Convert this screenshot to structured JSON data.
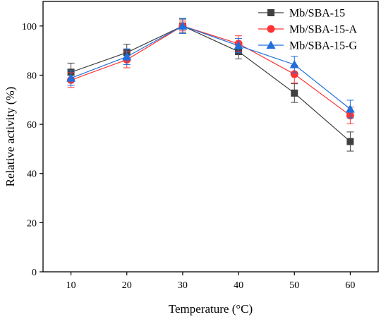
{
  "chart_data": {
    "type": "line",
    "xlabel": "Temperature (°C)",
    "ylabel": "Relative activity (%)",
    "xlim": [
      5,
      65
    ],
    "ylim": [
      0,
      110
    ],
    "xticks": [
      10,
      20,
      30,
      40,
      50,
      60
    ],
    "yticks": [
      0,
      20,
      40,
      60,
      80,
      100
    ],
    "legend_position": "top-right",
    "grid": false,
    "x": [
      10,
      20,
      30,
      40,
      50,
      60
    ],
    "series": [
      {
        "name": "Mb/SBA-15",
        "marker": "square",
        "color": "#404040",
        "values": [
          81.2,
          89.2,
          100,
          89.6,
          72.7,
          53.0
        ],
        "errors": [
          3.7,
          3.4,
          2.8,
          3.0,
          3.8,
          3.9
        ]
      },
      {
        "name": "Mb/SBA-15-A",
        "marker": "circle",
        "color": "#ff3333",
        "values": [
          78.0,
          86.3,
          100,
          92.8,
          80.4,
          63.6
        ],
        "errors": [
          3.0,
          3.3,
          2.0,
          3.2,
          3.6,
          3.4
        ]
      },
      {
        "name": "Mb/SBA-15-G",
        "marker": "triangle",
        "color": "#1f6fdc",
        "values": [
          78.8,
          87.5,
          100,
          92.0,
          84.3,
          66.2
        ],
        "errors": [
          3.0,
          3.2,
          3.1,
          2.9,
          3.4,
          3.6
        ]
      }
    ]
  }
}
